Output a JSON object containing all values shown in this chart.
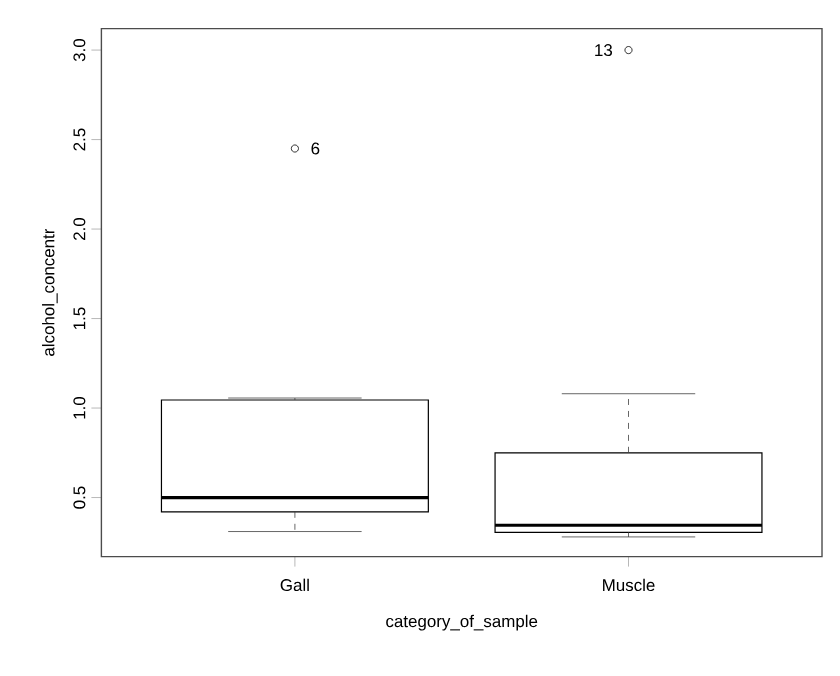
{
  "chart_data": {
    "type": "box",
    "categories": [
      "Gall",
      "Muscle"
    ],
    "boxes": [
      {
        "low": 0.31,
        "q1": 0.42,
        "median": 0.5,
        "q3": 1.045,
        "high": 1.056,
        "outliers": [
          2.45
        ]
      },
      {
        "low": 0.28,
        "q1": 0.305,
        "median": 0.345,
        "q3": 0.75,
        "high": 1.08,
        "outliers": [
          3.0
        ]
      }
    ],
    "xlabel": "category_of_sample",
    "ylabel": "alcohol_concentr",
    "ylim": [
      0.17,
      3.12
    ],
    "yticks": [
      0.5,
      {
        "value": 1,
        "label": "1.0"
      },
      1.5,
      {
        "value": 2,
        "label": "2.0"
      },
      2.5,
      {
        "value": 3,
        "label": "3.0"
      }
    ],
    "annotations": [
      "6",
      "13"
    ],
    "marker": "circle"
  }
}
